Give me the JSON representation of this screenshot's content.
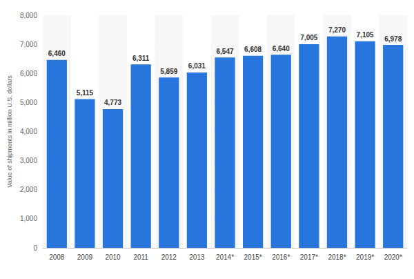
{
  "chart_data": {
    "type": "bar",
    "y_label": "Value of shipments in million U.S. dollars",
    "categories": [
      "2008",
      "2009",
      "2010",
      "2011",
      "2012",
      "2013",
      "2014*",
      "2015*",
      "2016*",
      "2017*",
      "2018*",
      "2019*",
      "2020*"
    ],
    "values": [
      6460,
      5115,
      4773,
      6311,
      5859,
      6031,
      6547,
      6608,
      6640,
      7005,
      7270,
      7105,
      6978
    ],
    "value_labels": [
      "6,460",
      "5,115",
      "4,773",
      "6,311",
      "5,859",
      "6,031",
      "6,547",
      "6,608",
      "6,640",
      "7,005",
      "7,270",
      "7,105",
      "6,978"
    ],
    "data_labels": true,
    "color": "#2876dd",
    "ylim": [
      0,
      8000
    ],
    "yticks": [
      0,
      {
        "value": 1000,
        "label": "1,000"
      },
      {
        "value": 2000,
        "label": "2,000"
      },
      {
        "value": 3000,
        "label": "3,000"
      },
      {
        "value": 4000,
        "label": "4,000"
      },
      {
        "value": 5000,
        "label": "5,000"
      },
      {
        "value": 6000,
        "label": "6,000"
      },
      {
        "value": 7000,
        "label": "7,000"
      },
      {
        "value": 8000,
        "label": "8,000"
      }
    ],
    "grid": true
  }
}
